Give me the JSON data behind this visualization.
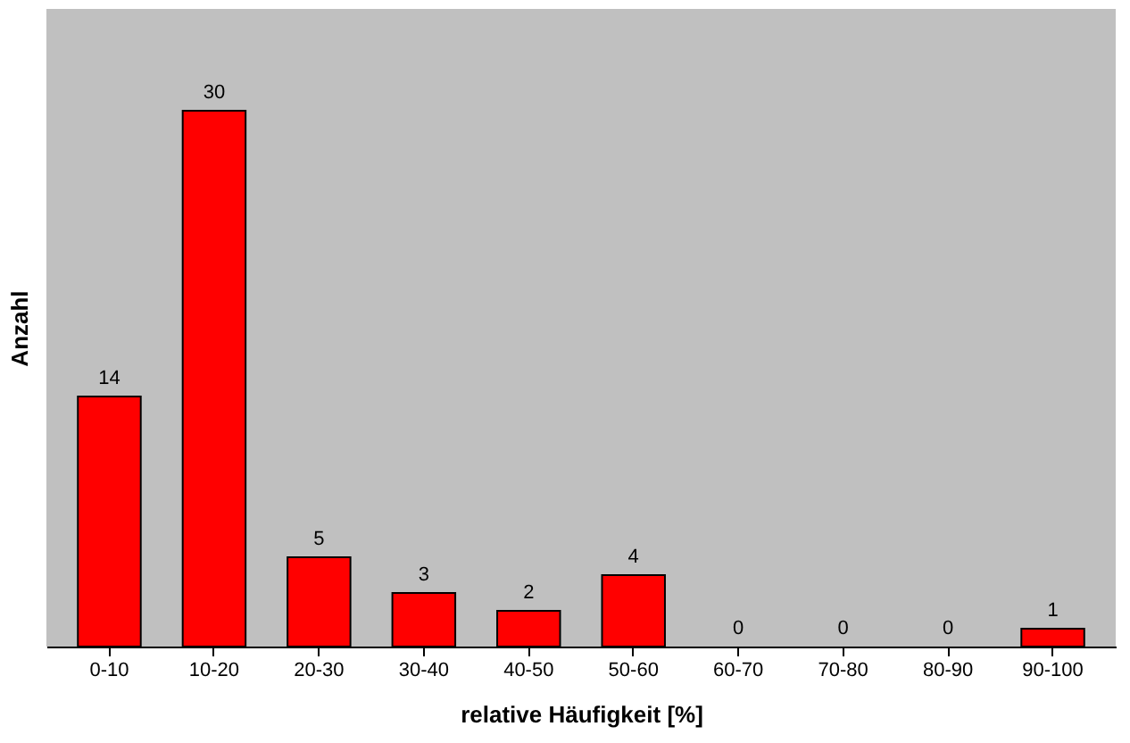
{
  "chart_data": {
    "type": "bar",
    "xlabel": "relative Häufigkeit [%]",
    "ylabel": "Anzahl",
    "categories": [
      "0-10",
      "10-20",
      "20-30",
      "30-40",
      "40-50",
      "50-60",
      "60-70",
      "70-80",
      "80-90",
      "90-100"
    ],
    "values": [
      14,
      30,
      5,
      3,
      2,
      4,
      0,
      0,
      0,
      1
    ],
    "color": "#ff0000",
    "data_labels": true,
    "grid": false,
    "tick_labels": "x"
  }
}
